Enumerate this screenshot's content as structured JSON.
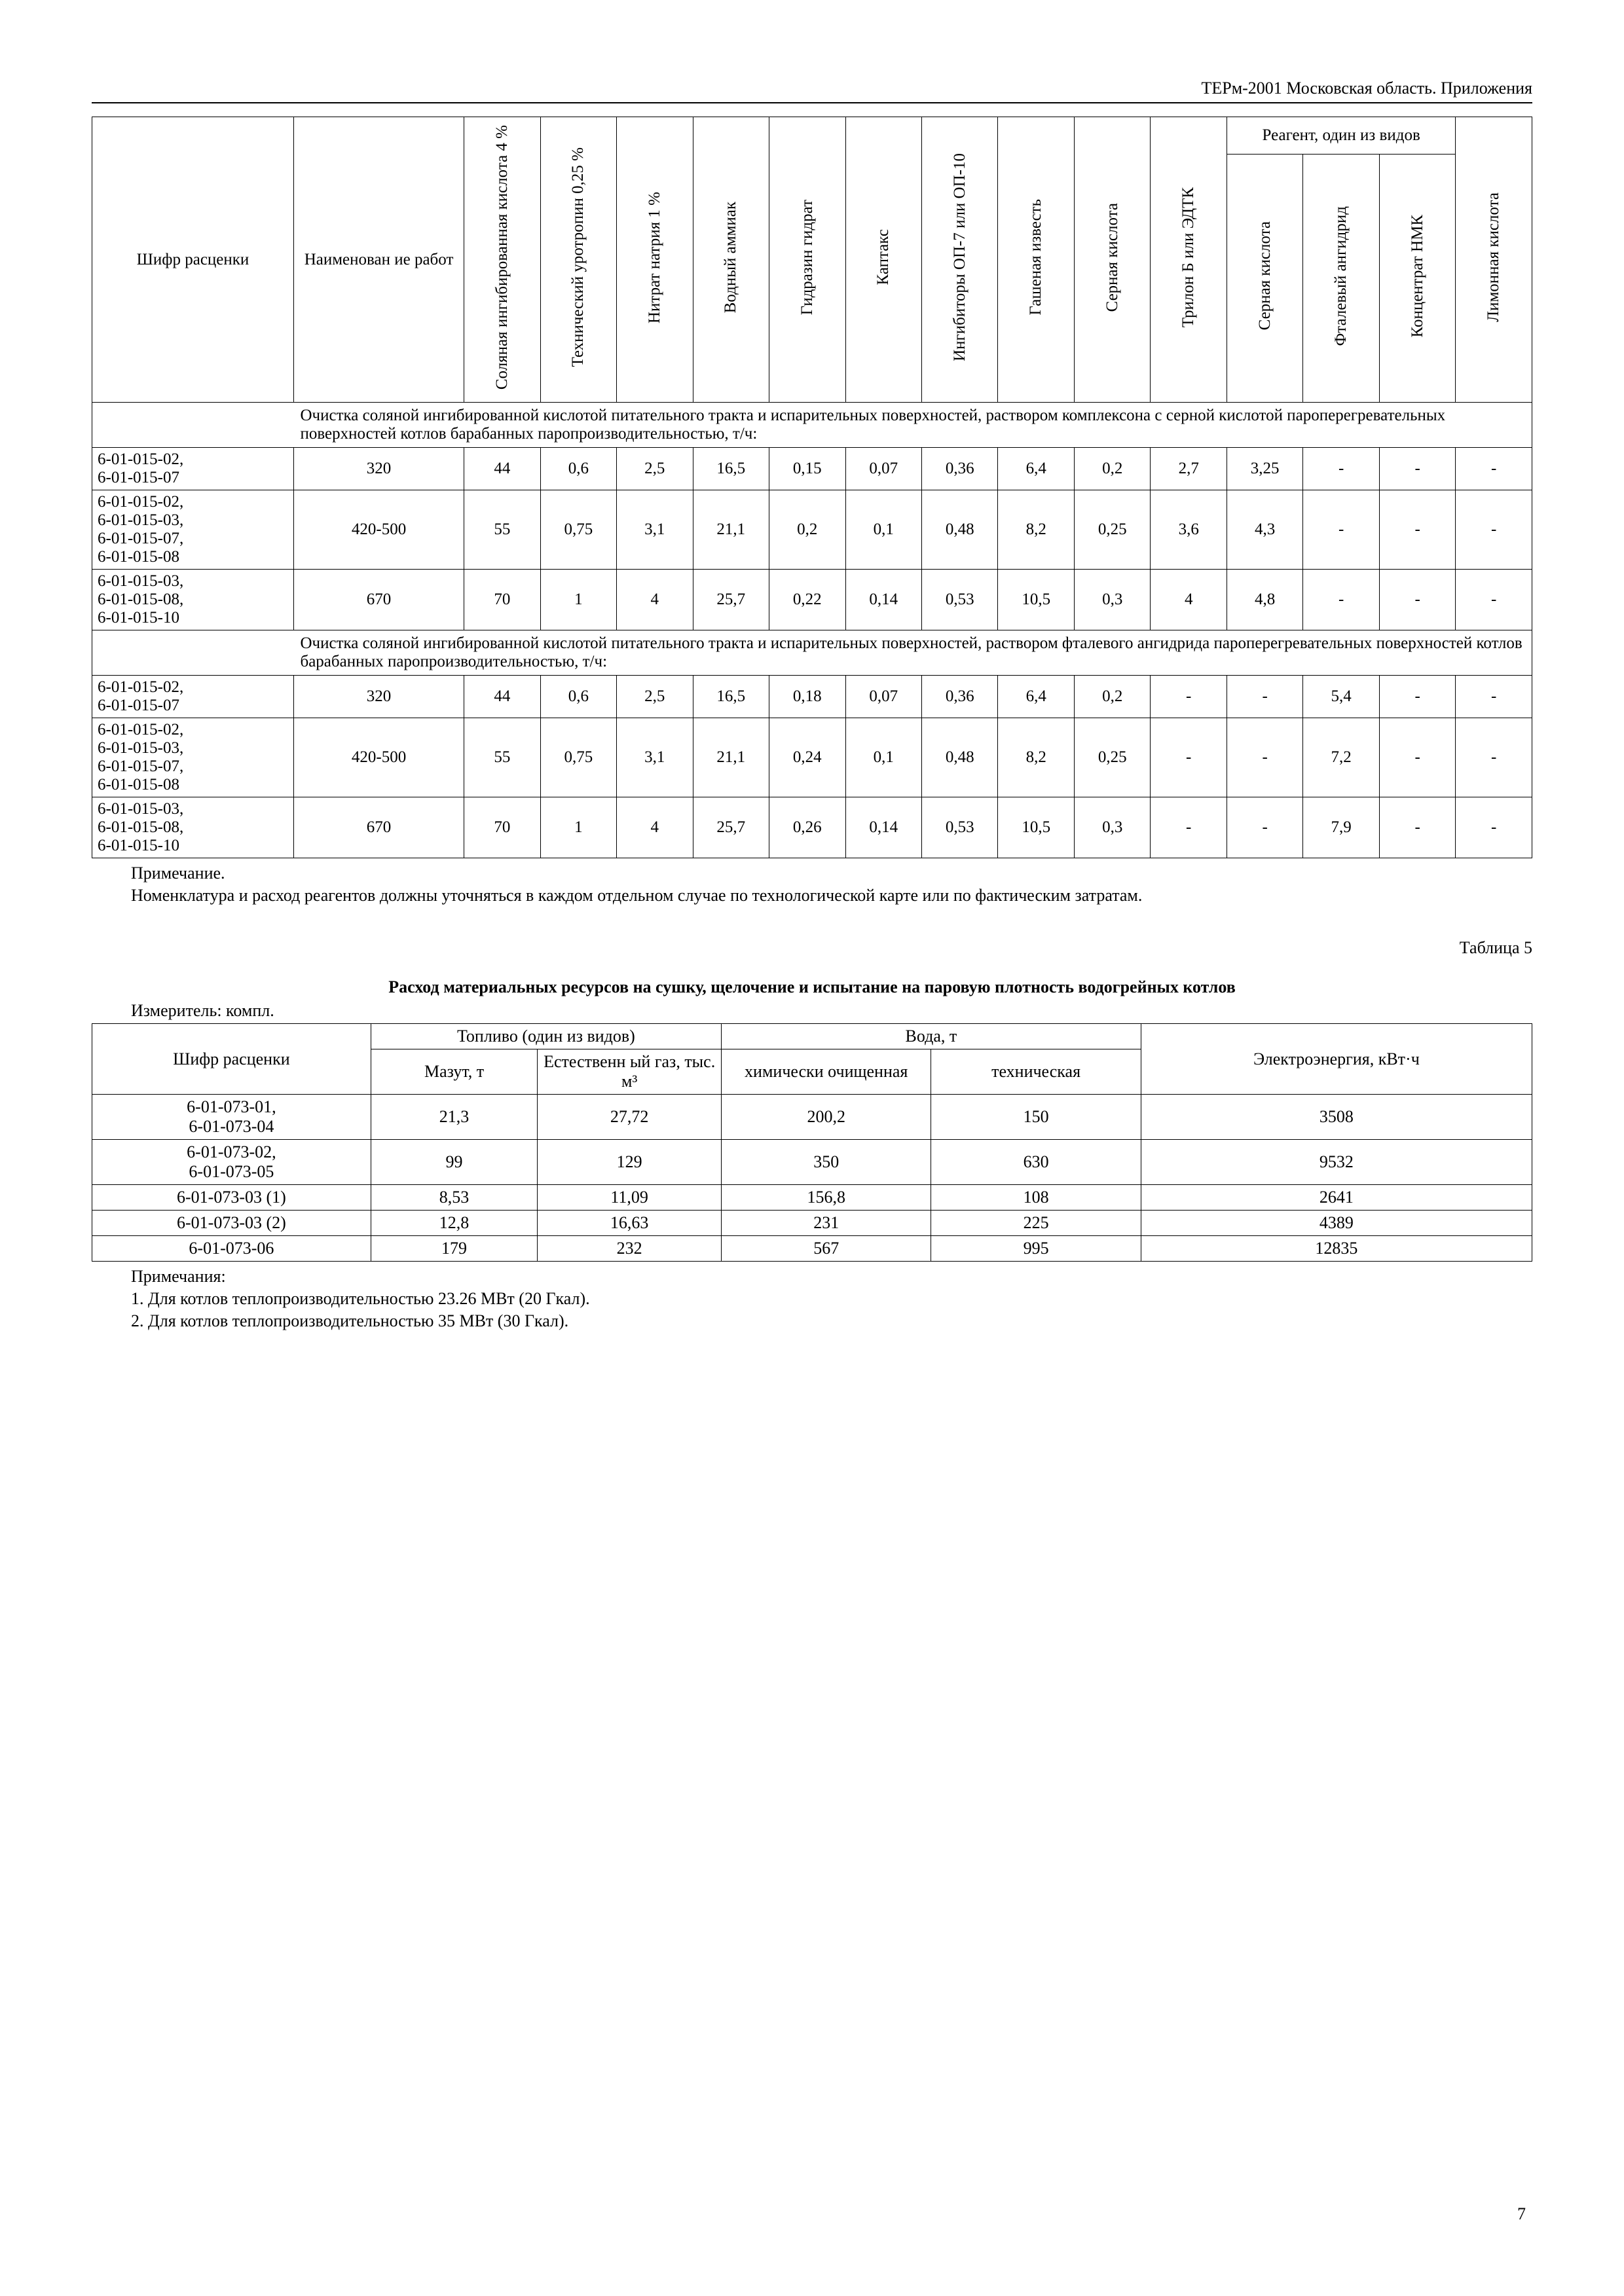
{
  "header": "ТЕРм-2001 Московская область. Приложения",
  "page_number": "7",
  "table1": {
    "headers": {
      "col1": "Шифр расценки",
      "col2": "Наименован ие работ",
      "col3": "Соляная ингибированная кислота 4 %",
      "col4": "Технический уротропин 0,25 %",
      "col5": "Нитрат натрия 1 %",
      "col6": "Водный аммиак",
      "col7": "Гидразин гидрат",
      "col8": "Каптакс",
      "col9": "Ингибиторы ОП-7 или ОП-10",
      "col10": "Гашеная известь",
      "col11": "Серная кислота",
      "col12": "Трилон Б или ЭДТК",
      "group": "Реагент, один из видов",
      "col13": "Серная кислота",
      "col14": "Фталевый ангидрид",
      "col15": "Концентрат НМК",
      "col16": "Лимонная кислота"
    },
    "section1": "Очистка соляной ингибированной кислотой  питательного тракта и испарительных поверхностей, раствором комплексона с серной кислотой пароперегревательных поверхностей котлов барабанных паропроизводительностью, т/ч:",
    "rows1": [
      {
        "code": "6-01-015-02, 6-01-015-07",
        "c2": "320",
        "c3": "44",
        "c4": "0,6",
        "c5": "2,5",
        "c6": "16,5",
        "c7": "0,15",
        "c8": "0,07",
        "c9": "0,36",
        "c10": "6,4",
        "c11": "0,2",
        "c12": "2,7",
        "c13": "3,25",
        "c14": "-",
        "c15": "-",
        "c16": "-"
      },
      {
        "code": "6-01-015-02, 6-01-015-03, 6-01-015-07, 6-01-015-08",
        "c2": "420-500",
        "c3": "55",
        "c4": "0,75",
        "c5": "3,1",
        "c6": "21,1",
        "c7": "0,2",
        "c8": "0,1",
        "c9": "0,48",
        "c10": "8,2",
        "c11": "0,25",
        "c12": "3,6",
        "c13": "4,3",
        "c14": "-",
        "c15": "-",
        "c16": "-"
      },
      {
        "code": "6-01-015-03, 6-01-015-08, 6-01-015-10",
        "c2": "670",
        "c3": "70",
        "c4": "1",
        "c5": "4",
        "c6": "25,7",
        "c7": "0,22",
        "c8": "0,14",
        "c9": "0,53",
        "c10": "10,5",
        "c11": "0,3",
        "c12": "4",
        "c13": "4,8",
        "c14": "-",
        "c15": "-",
        "c16": "-"
      }
    ],
    "section2": "Очистка соляной ингибированной кислотой питательного тракта и испарительных поверхностей, раствором фталевого ангидрида пароперегревательных поверхностей котлов барабанных паропроизводительностью, т/ч:",
    "rows2": [
      {
        "code": "6-01-015-02, 6-01-015-07",
        "c2": "320",
        "c3": "44",
        "c4": "0,6",
        "c5": "2,5",
        "c6": "16,5",
        "c7": "0,18",
        "c8": "0,07",
        "c9": "0,36",
        "c10": "6,4",
        "c11": "0,2",
        "c12": "-",
        "c13": "-",
        "c14": "5,4",
        "c15": "-",
        "c16": "-"
      },
      {
        "code": "6-01-015-02, 6-01-015-03, 6-01-015-07, 6-01-015-08",
        "c2": "420-500",
        "c3": "55",
        "c4": "0,75",
        "c5": "3,1",
        "c6": "21,1",
        "c7": "0,24",
        "c8": "0,1",
        "c9": "0,48",
        "c10": "8,2",
        "c11": "0,25",
        "c12": "-",
        "c13": "-",
        "c14": "7,2",
        "c15": "-",
        "c16": "-"
      },
      {
        "code": "6-01-015-03, 6-01-015-08, 6-01-015-10",
        "c2": "670",
        "c3": "70",
        "c4": "1",
        "c5": "4",
        "c6": "25,7",
        "c7": "0,26",
        "c8": "0,14",
        "c9": "0,53",
        "c10": "10,5",
        "c11": "0,3",
        "c12": "-",
        "c13": "-",
        "c14": "7,9",
        "c15": "-",
        "c16": "-"
      }
    ]
  },
  "note1_title": "Примечание.",
  "note1_text": "Номенклатура и расход реагентов должны уточняться в каждом отдельном случае по технологической карте или по фактическим затратам.",
  "table2_caption": "Таблица 5",
  "table2_title": "Расход материальных ресурсов на сушку, щелочение и испытание на паровую плотность водогрейных котлов",
  "table2_measure": "Измеритель: компл.",
  "table2": {
    "headers": {
      "col1": "Шифр расценки",
      "grp1": "Топливо (один из видов)",
      "grp2": "Вода, т",
      "col2": "Мазут, т",
      "col3": "Естественн ый газ, тыс. м³",
      "col4": "химически очищенная",
      "col5": "техническая",
      "col6": "Электроэнергия, кВт·ч"
    },
    "rows": [
      {
        "c1": "6-01-073-01, 6-01-073-04",
        "c2": "21,3",
        "c3": "27,72",
        "c4": "200,2",
        "c5": "150",
        "c6": "3508"
      },
      {
        "c1": "6-01-073-02, 6-01-073-05",
        "c2": "99",
        "c3": "129",
        "c4": "350",
        "c5": "630",
        "c6": "9532"
      },
      {
        "c1": "6-01-073-03 (1)",
        "c2": "8,53",
        "c3": "11,09",
        "c4": "156,8",
        "c5": "108",
        "c6": "2641"
      },
      {
        "c1": "6-01-073-03 (2)",
        "c2": "12,8",
        "c3": "16,63",
        "c4": "231",
        "c5": "225",
        "c6": "4389"
      },
      {
        "c1": "6-01-073-06",
        "c2": "179",
        "c3": "232",
        "c4": "567",
        "c5": "995",
        "c6": "12835"
      }
    ]
  },
  "notes2_title": "Примечания:",
  "notes2_1": "1. Для котлов теплопроизводительностью 23.26 МВт (20 Гкал).",
  "notes2_2": "2. Для котлов теплопроизводительностью 35 МВт (30 Гкал)."
}
